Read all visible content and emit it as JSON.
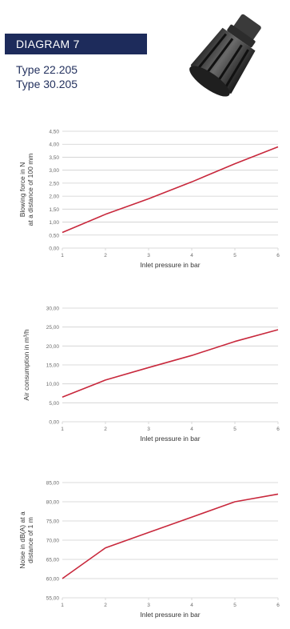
{
  "header": {
    "title": "DIAGRAM 7",
    "types": [
      "Type 22.205",
      "Type 30.205"
    ]
  },
  "colors": {
    "header_bg": "#1d2b5b",
    "header_text": "#ffffff",
    "type_text": "#24325f",
    "line": "#c8283c",
    "grid": "#cfcfcf",
    "axis_text": "#6b6b6b"
  },
  "product_image": {
    "icon": "nozzle-product-icon"
  },
  "chart_data": [
    {
      "type": "line",
      "title": "",
      "xlabel": "Inlet pressure in bar",
      "ylabel": "Blowing force in N\nat a distance of 100 mm",
      "x_ticks": [
        "1",
        "2",
        "3",
        "4",
        "5",
        "6"
      ],
      "y_ticks": [
        "0,00",
        "0,50",
        "1,00",
        "1,50",
        "2,00",
        "2,50",
        "3,00",
        "3,50",
        "4,00",
        "4,50"
      ],
      "xlim": [
        1,
        6
      ],
      "ylim": [
        0,
        4.5
      ],
      "grid": true,
      "series": [
        {
          "x": [
            1,
            2,
            3,
            4,
            5,
            6
          ],
          "values": [
            0.6,
            1.3,
            1.9,
            2.55,
            3.25,
            3.9
          ]
        }
      ]
    },
    {
      "type": "line",
      "title": "",
      "xlabel": "Inlet pressure in bar",
      "ylabel": "Air consumption in m³/h",
      "x_ticks": [
        "1",
        "2",
        "3",
        "4",
        "5",
        "6"
      ],
      "y_ticks": [
        "0,00",
        "5,00",
        "10,00",
        "15,00",
        "20,00",
        "25,00",
        "30,00"
      ],
      "xlim": [
        1,
        6
      ],
      "ylim": [
        0,
        30
      ],
      "grid": true,
      "series": [
        {
          "x": [
            1,
            2,
            3,
            4,
            5,
            6
          ],
          "values": [
            6.5,
            11,
            14.3,
            17.5,
            21.2,
            24.3
          ]
        }
      ]
    },
    {
      "type": "line",
      "title": "",
      "xlabel": "Inlet pressure in bar",
      "ylabel": "Noise in dB(A) at a\ndistance of 1 m",
      "x_ticks": [
        "1",
        "2",
        "3",
        "4",
        "5",
        "6"
      ],
      "y_ticks": [
        "55,00",
        "60,00",
        "65,00",
        "70,00",
        "75,00",
        "80,00",
        "85,00"
      ],
      "xlim": [
        1,
        6
      ],
      "ylim": [
        55,
        85
      ],
      "grid": true,
      "series": [
        {
          "x": [
            1,
            2,
            3,
            4,
            5,
            6
          ],
          "values": [
            60,
            68,
            72,
            76,
            80,
            82
          ]
        }
      ]
    }
  ]
}
